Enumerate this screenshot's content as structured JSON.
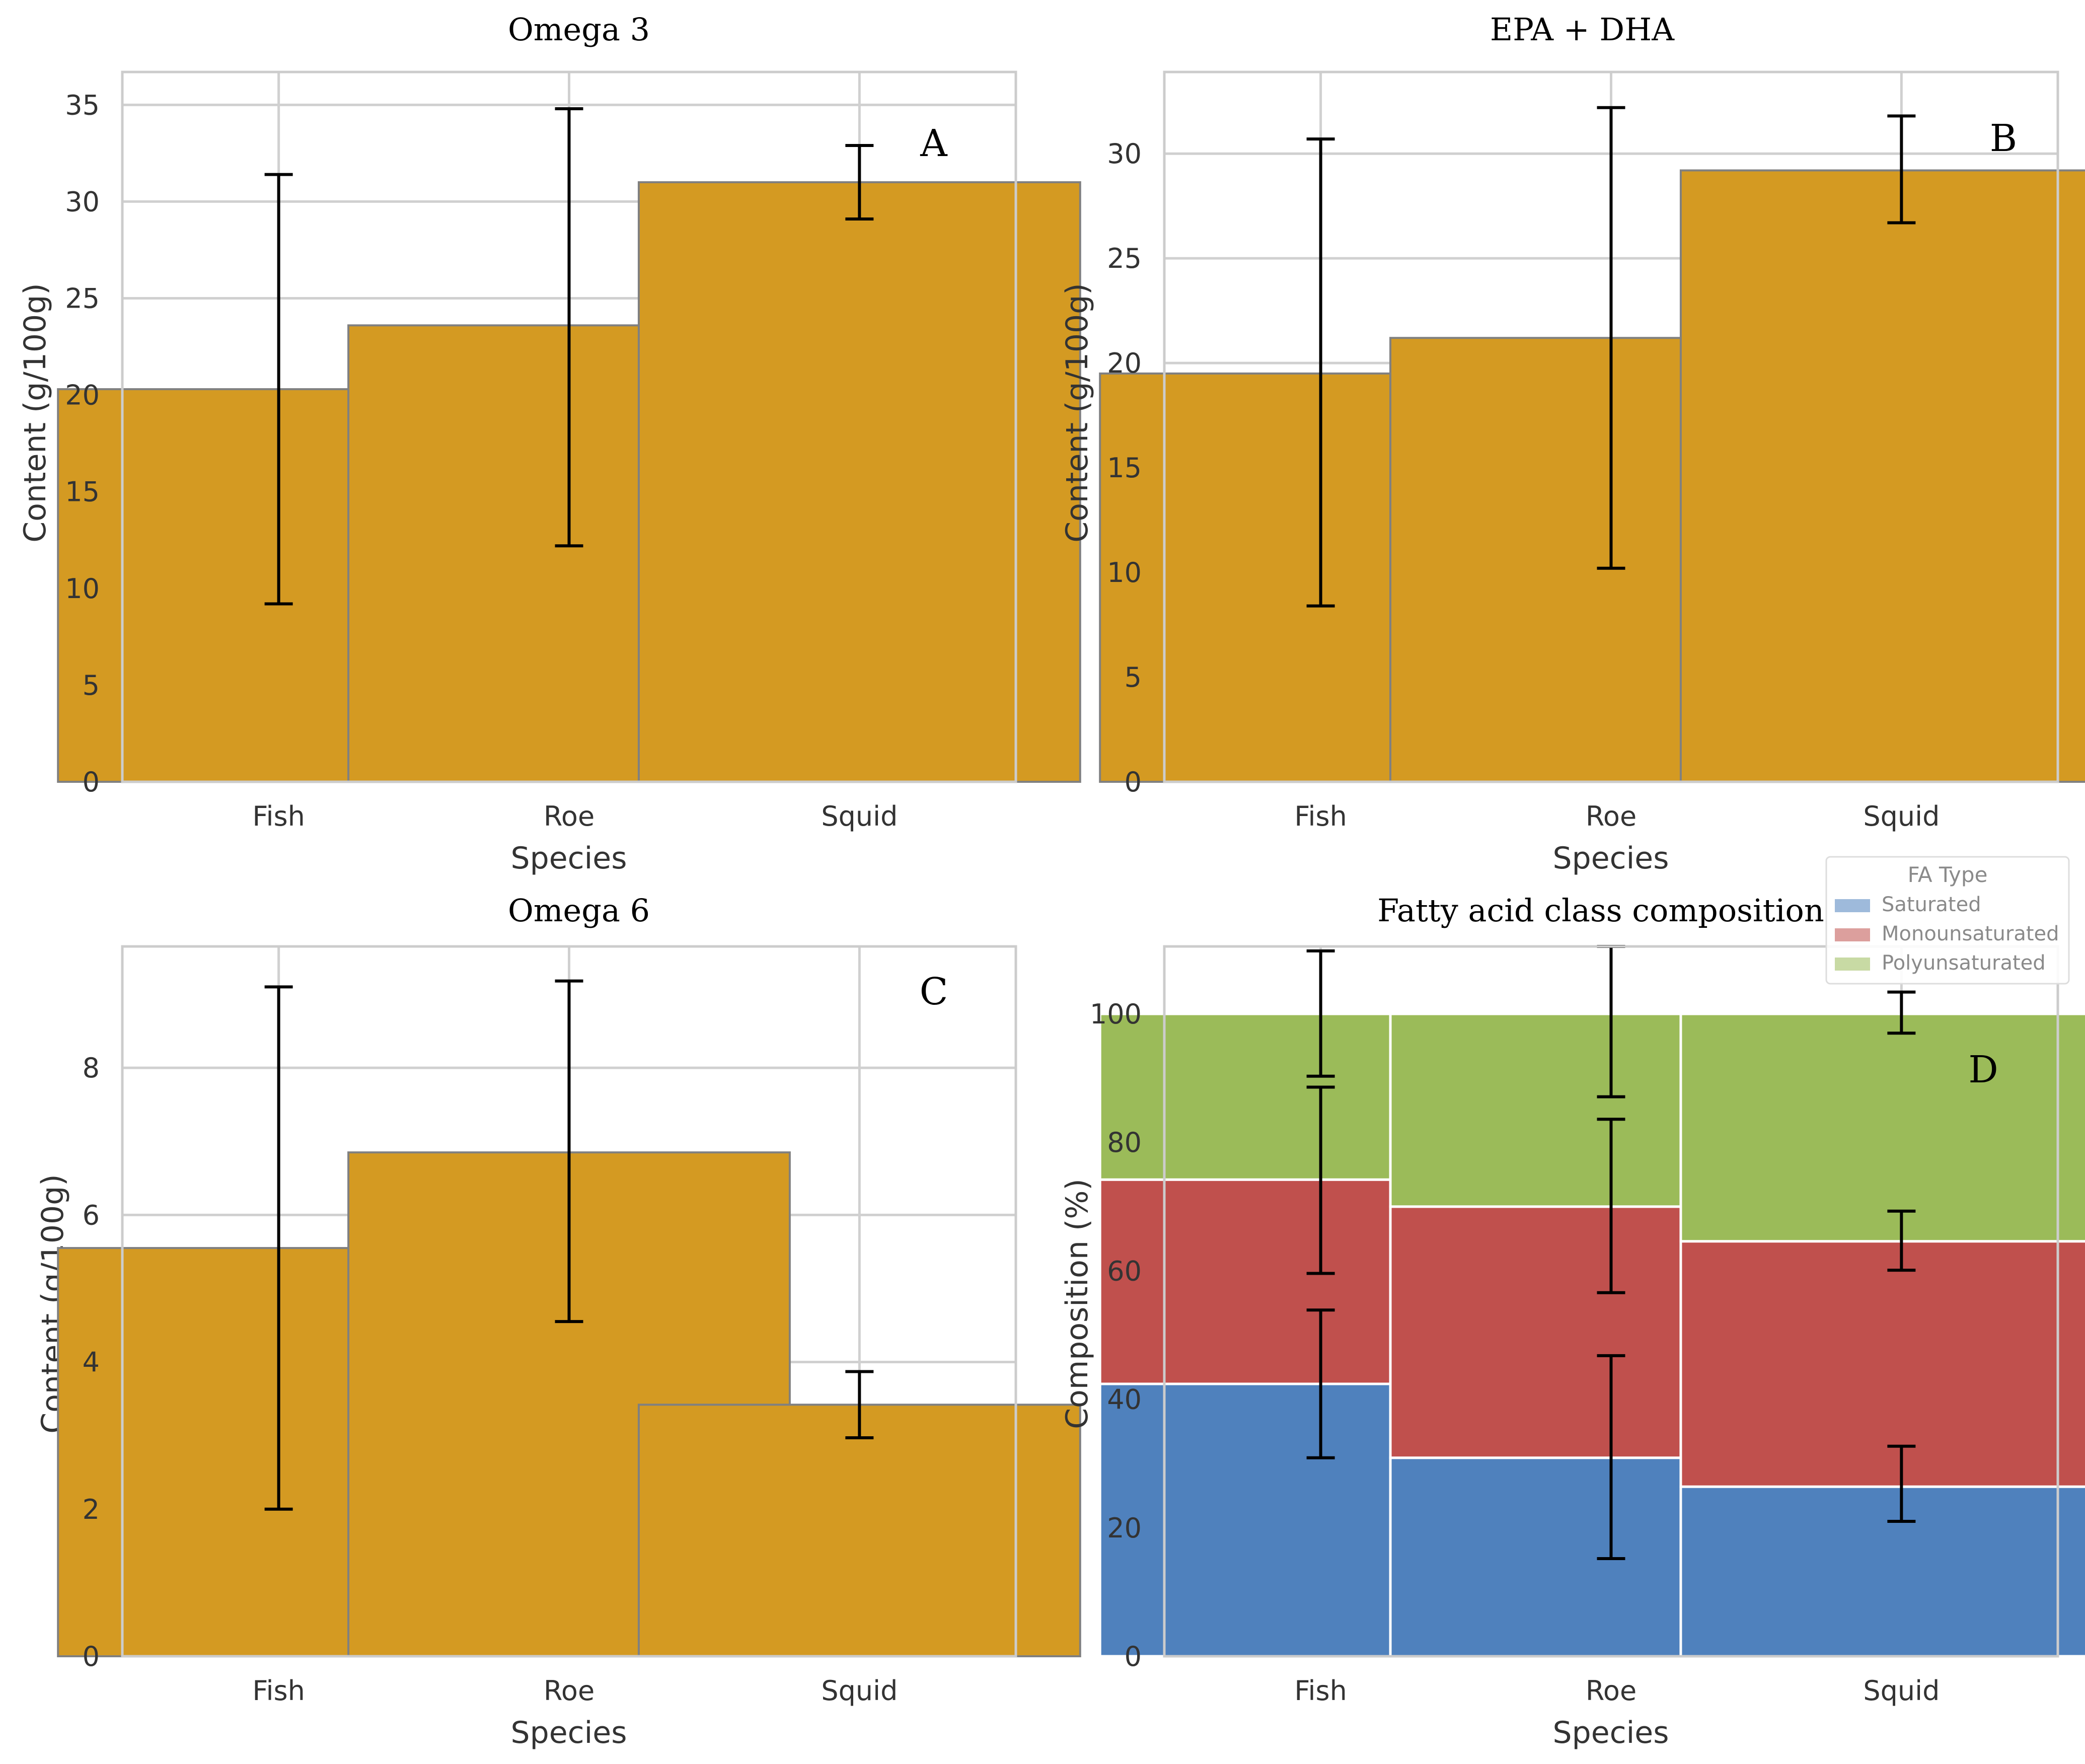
{
  "chart_data": [
    {
      "type": "bar",
      "panel_label": "A",
      "title": "Omega 3",
      "xlabel": "Species",
      "ylabel": "Content (g/100g)",
      "categories": [
        "Fish",
        "Roe",
        "Squid"
      ],
      "values": [
        20.3,
        23.6,
        31.0
      ],
      "error_low": [
        9.2,
        12.2,
        29.1
      ],
      "error_high": [
        31.4,
        34.8,
        32.9
      ],
      "ylim": [
        0,
        36.7
      ],
      "yticks": [
        0,
        5,
        10,
        15,
        20,
        25,
        30,
        35
      ],
      "color": "#d49a22"
    },
    {
      "type": "bar",
      "panel_label": "B",
      "title": "EPA + DHA",
      "xlabel": "Species",
      "ylabel": "Content (g/100g)",
      "categories": [
        "Fish",
        "Roe",
        "Squid"
      ],
      "values": [
        19.5,
        21.2,
        29.2
      ],
      "error_low": [
        8.4,
        10.2,
        26.7
      ],
      "error_high": [
        30.7,
        32.2,
        31.8
      ],
      "ylim": [
        0,
        33.9
      ],
      "yticks": [
        0,
        5,
        10,
        15,
        20,
        25,
        30
      ],
      "color": "#d49a22"
    },
    {
      "type": "bar",
      "panel_label": "C",
      "title": "Omega 6",
      "xlabel": "Species",
      "ylabel": "Content (g/100g)",
      "categories": [
        "Fish",
        "Roe",
        "Squid"
      ],
      "values": [
        5.55,
        6.85,
        3.42
      ],
      "error_low": [
        2.0,
        4.55,
        2.97
      ],
      "error_high": [
        9.1,
        9.18,
        3.87
      ],
      "ylim": [
        0,
        9.65
      ],
      "yticks": [
        0,
        2,
        4,
        6,
        8
      ],
      "color": "#d49a22"
    },
    {
      "type": "bar",
      "stacked": true,
      "panel_label": "D",
      "title": "Fatty acid class composition",
      "xlabel": "Species",
      "ylabel": "Composition (%)",
      "categories": [
        "Fish",
        "Roe",
        "Squid"
      ],
      "ylim": [
        0,
        110.5
      ],
      "yticks": [
        0,
        20,
        40,
        60,
        80,
        100
      ],
      "legend": {
        "title": "FA Type",
        "position": "top-right"
      },
      "series": [
        {
          "name": "Saturated",
          "color": "#4f81bd",
          "values": [
            42.4,
            30.9,
            26.4
          ],
          "error_low": [
            30.9,
            15.2,
            21.0
          ],
          "error_high": [
            53.9,
            46.8,
            32.7
          ]
        },
        {
          "name": "Monounsaturated",
          "color": "#c0504d",
          "values": [
            31.8,
            39.1,
            38.2
          ],
          "error_low": [
            59.6,
            56.6,
            60.1
          ],
          "error_high": [
            88.6,
            83.6,
            69.3
          ]
        },
        {
          "name": "Polyunsaturated",
          "color": "#9bbb59",
          "values": [
            25.8,
            30.0,
            35.4
          ],
          "error_low": [
            90.3,
            87.1,
            97.0
          ],
          "error_high": [
            109.8,
            113.0,
            103.4
          ]
        }
      ]
    }
  ]
}
